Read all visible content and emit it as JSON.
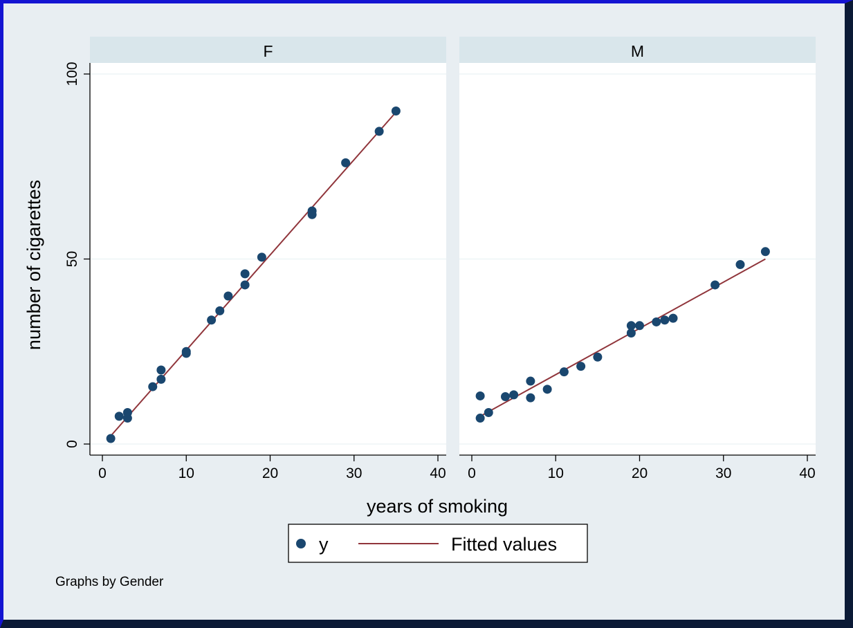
{
  "chart_data": {
    "type": "scatter",
    "by_variable_note": "Graphs by Gender",
    "ylabel": "number of cigarettes",
    "xlabel": "years of smoking",
    "xlim": [
      0,
      40
    ],
    "ylim": [
      0,
      100
    ],
    "x_ticks": [
      0,
      10,
      20,
      30,
      40
    ],
    "y_ticks": [
      0,
      50,
      100
    ],
    "grid": "horizontal at y ticks",
    "legend": {
      "position": "bottom-center",
      "entries": [
        {
          "label": "y",
          "kind": "marker",
          "color": "#1a476f"
        },
        {
          "label": "Fitted values",
          "kind": "line",
          "color": "#90353b"
        }
      ]
    },
    "colors": {
      "marker": "#1a476f",
      "fit_line": "#90353b",
      "plot_bg": "#ffffff",
      "strip_bg": "#d9e6eb",
      "outer_bg": "#e8eef2",
      "grid": "#eaf2f3"
    },
    "panels": [
      {
        "label": "F",
        "points": [
          [
            1,
            1.5
          ],
          [
            2,
            7.5
          ],
          [
            3,
            8.5
          ],
          [
            3,
            7
          ],
          [
            6,
            15.5
          ],
          [
            7,
            17.5
          ],
          [
            7,
            20
          ],
          [
            10,
            24.5
          ],
          [
            10,
            25
          ],
          [
            13,
            33.5
          ],
          [
            14,
            36
          ],
          [
            15,
            40
          ],
          [
            17,
            43
          ],
          [
            17,
            46
          ],
          [
            19,
            50.5
          ],
          [
            25,
            63
          ],
          [
            25,
            62
          ],
          [
            29,
            76
          ],
          [
            33,
            84.5
          ],
          [
            35,
            90
          ]
        ],
        "fit": [
          [
            1,
            2.2
          ],
          [
            35,
            89.7
          ]
        ]
      },
      {
        "label": "M",
        "points": [
          [
            1,
            13
          ],
          [
            1,
            7
          ],
          [
            2,
            8.5
          ],
          [
            4,
            12.8
          ],
          [
            5,
            13.3
          ],
          [
            7,
            17
          ],
          [
            7,
            12.5
          ],
          [
            9,
            14.8
          ],
          [
            11,
            19.5
          ],
          [
            13,
            21
          ],
          [
            15,
            23.5
          ],
          [
            19,
            30
          ],
          [
            19,
            32
          ],
          [
            20,
            32
          ],
          [
            22,
            33
          ],
          [
            23,
            33.5
          ],
          [
            24,
            34
          ],
          [
            29,
            43
          ],
          [
            32,
            48.5
          ],
          [
            35,
            52
          ]
        ],
        "fit": [
          [
            1,
            7.5
          ],
          [
            35,
            50
          ]
        ]
      }
    ]
  }
}
